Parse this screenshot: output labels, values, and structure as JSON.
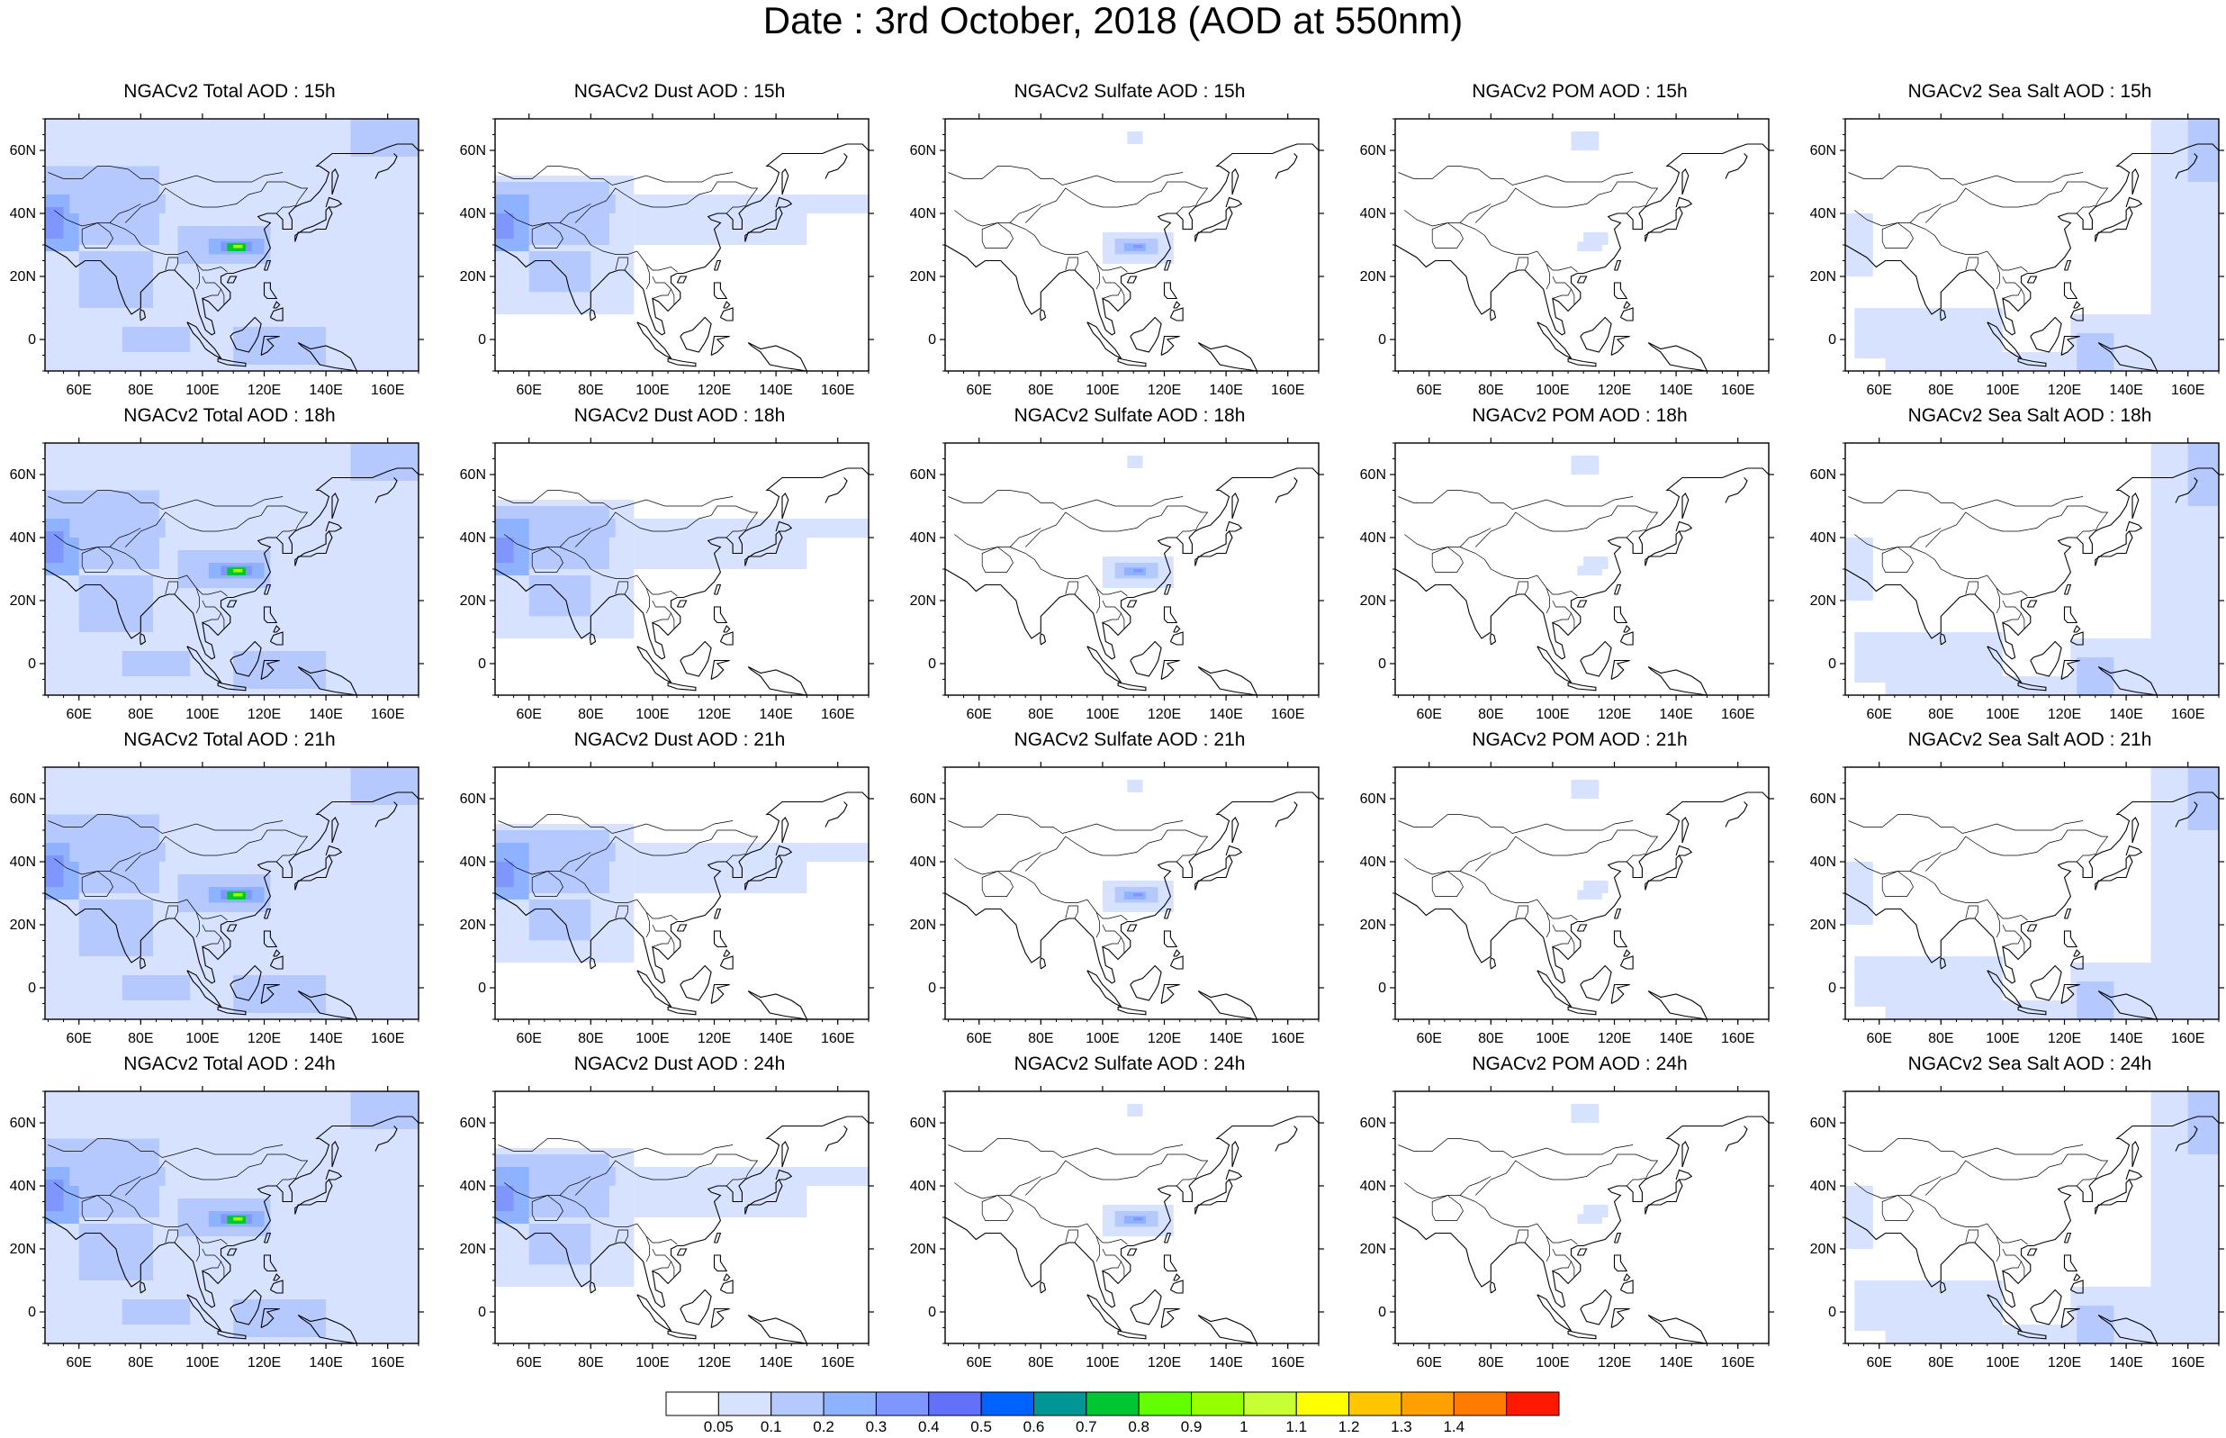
{
  "title": "Date : 3rd October, 2018 (AOD at 550nm)",
  "map": {
    "lon_range": [
      49,
      170
    ],
    "lat_range": [
      -10,
      70
    ],
    "lon_ticks": [
      "60E",
      "80E",
      "100E",
      "120E",
      "140E",
      "160E"
    ],
    "lat_ticks": [
      "0",
      "20N",
      "40N",
      "60N"
    ],
    "coastline_color": "#000000",
    "frame_color": "#000000"
  },
  "rows": [
    "15h",
    "18h",
    "21h",
    "24h"
  ],
  "columns": [
    "Total",
    "Dust",
    "Sulfate",
    "POM",
    "Sea Salt"
  ],
  "panels": [
    [
      {
        "title": "NGACv2 Total AOD : 15h"
      },
      {
        "title": "NGACv2 Dust AOD : 15h"
      },
      {
        "title": "NGACv2 Sulfate AOD : 15h"
      },
      {
        "title": "NGACv2 POM AOD : 15h"
      },
      {
        "title": "NGACv2 Sea Salt AOD : 15h"
      }
    ],
    [
      {
        "title": "NGACv2 Total AOD : 18h"
      },
      {
        "title": "NGACv2 Dust AOD : 18h"
      },
      {
        "title": "NGACv2 Sulfate AOD : 18h"
      },
      {
        "title": "NGACv2 POM AOD : 18h"
      },
      {
        "title": "NGACv2 Sea Salt AOD : 18h"
      }
    ],
    [
      {
        "title": "NGACv2 Total AOD : 21h"
      },
      {
        "title": "NGACv2 Dust AOD : 21h"
      },
      {
        "title": "NGACv2 Sulfate AOD : 21h"
      },
      {
        "title": "NGACv2 POM AOD : 21h"
      },
      {
        "title": "NGACv2 Sea Salt AOD : 21h"
      }
    ],
    [
      {
        "title": "NGACv2 Total AOD : 24h"
      },
      {
        "title": "NGACv2 Dust AOD : 24h"
      },
      {
        "title": "NGACv2 Sulfate AOD : 24h"
      },
      {
        "title": "NGACv2 POM AOD : 24h"
      },
      {
        "title": "NGACv2 Sea Salt  AOD : 24h"
      }
    ]
  ],
  "colorbar": {
    "labels": [
      "0.05",
      "0.1",
      "0.2",
      "0.3",
      "0.4",
      "0.5",
      "0.6",
      "0.7",
      "0.8",
      "0.9",
      "1",
      "1.1",
      "1.2",
      "1.3",
      "1.4"
    ],
    "colors": [
      "#ffffff",
      "#d6e2ff",
      "#b5c9ff",
      "#8eb2ff",
      "#7f96ff",
      "#6370f8",
      "#0063ff",
      "#009696",
      "#00c633",
      "#63ff00",
      "#96ff00",
      "#c6ff33",
      "#ffff00",
      "#ffc600",
      "#ffa000",
      "#ff7c00",
      "#ff1900"
    ]
  }
}
